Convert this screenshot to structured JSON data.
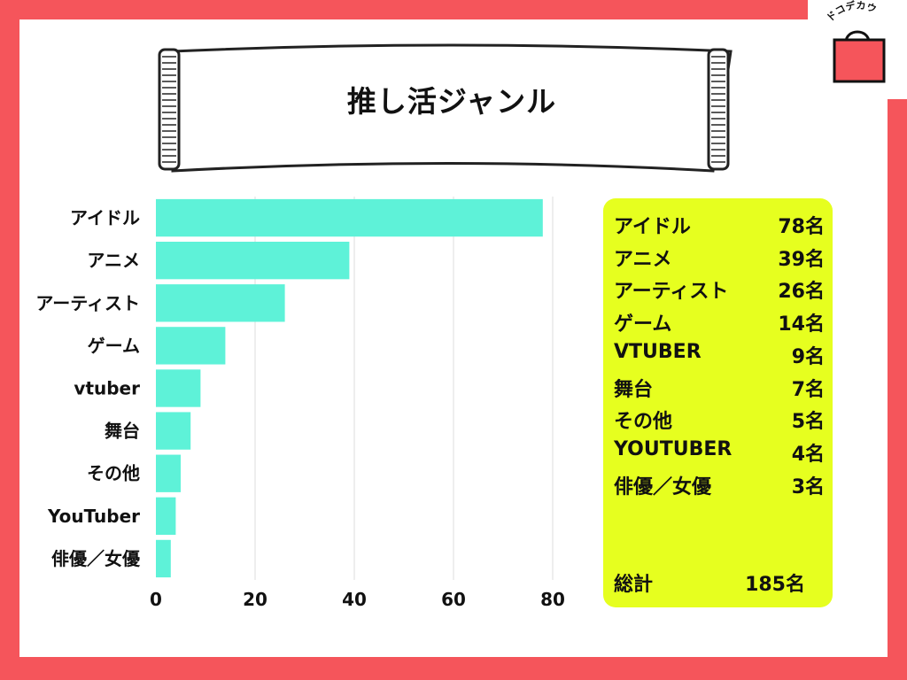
{
  "title": "推し活ジャンル",
  "brand": {
    "text": "ドコデカウ",
    "icon": "shopping-bag-icon",
    "bag_color": "#f5555b"
  },
  "colors": {
    "frame": "#f5555b",
    "bar": "#5ef2d8",
    "summary_bg": "#e6ff1f"
  },
  "chart_data": {
    "type": "bar",
    "orientation": "horizontal",
    "categories": [
      "アイドル",
      "アニメ",
      "アーティスト",
      "ゲーム",
      "vtuber",
      "舞台",
      "その他",
      "YouTuber",
      "俳優／女優"
    ],
    "values": [
      78,
      39,
      26,
      14,
      9,
      7,
      5,
      4,
      3
    ],
    "xticks": [
      "0",
      "20",
      "40",
      "60",
      "80"
    ],
    "xlim": [
      0,
      80
    ],
    "grid": true
  },
  "summary": {
    "rows": [
      {
        "name": "アイドル",
        "count": "78名"
      },
      {
        "name": "アニメ",
        "count": "39名"
      },
      {
        "name": "アーティスト",
        "count": "26名"
      },
      {
        "name": "ゲーム",
        "count": "14名"
      },
      {
        "name": "VTUBER",
        "count": "9名"
      },
      {
        "name": "舞台",
        "count": "7名"
      },
      {
        "name": "その他",
        "count": "5名"
      },
      {
        "name": "YOUTUBER",
        "count": "4名"
      },
      {
        "name": "俳優／女優",
        "count": "3名"
      }
    ],
    "total_label": "総計",
    "total_value": "185名"
  }
}
